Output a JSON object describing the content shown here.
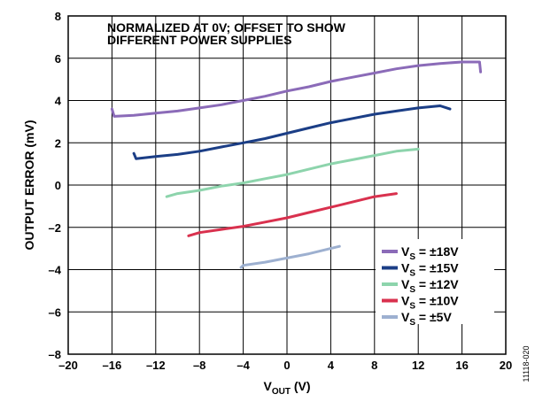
{
  "chart_data": {
    "type": "line",
    "xlabel": {
      "main": "V",
      "sub": "OUT",
      "unit": " (V)"
    },
    "ylabel": "OUTPUT ERROR (mV)",
    "xlim": [
      -20,
      20
    ],
    "ylim": [
      -8,
      8
    ],
    "xticks": [
      -20,
      -16,
      -12,
      -8,
      -4,
      0,
      4,
      8,
      12,
      16,
      20
    ],
    "yticks": [
      -8,
      -6,
      -4,
      -2,
      0,
      2,
      4,
      6,
      8
    ],
    "xtick_labels": [
      "–20",
      "–16",
      "–12",
      "–8",
      "–4",
      "0",
      "4",
      "8",
      "12",
      "16",
      "20"
    ],
    "ytick_labels": [
      "–8",
      "–6",
      "–4",
      "–2",
      "0",
      "2",
      "4",
      "6",
      "8"
    ],
    "grid": true,
    "annotation": [
      "NORMALIZED AT 0V; OFFSET TO SHOW",
      "DIFFERENT POWER SUPPLIES"
    ],
    "legend_position": "bottom-right",
    "figure_id": "11118-020",
    "series": [
      {
        "name": "V_S = ±18V",
        "legend_main": "V",
        "legend_sub": "S",
        "legend_rest": " = ±18V",
        "color": "#8B6BB8",
        "x": [
          -16,
          -15.8,
          -14,
          -12,
          -10,
          -8,
          -6,
          -4,
          -2,
          0,
          2,
          4,
          6,
          8,
          10,
          12,
          14,
          16,
          17.6,
          17.7
        ],
        "y": [
          3.6,
          3.25,
          3.3,
          3.4,
          3.5,
          3.65,
          3.8,
          4.0,
          4.2,
          4.45,
          4.65,
          4.9,
          5.1,
          5.3,
          5.5,
          5.65,
          5.75,
          5.82,
          5.82,
          5.35
        ]
      },
      {
        "name": "V_S = ±15V",
        "legend_main": "V",
        "legend_sub": "S",
        "legend_rest": " = ±15V",
        "color": "#1B3E86",
        "x": [
          -14,
          -13.8,
          -12,
          -10,
          -8,
          -6,
          -4,
          -2,
          0,
          2,
          4,
          6,
          8,
          10,
          12,
          14,
          14.9
        ],
        "y": [
          1.5,
          1.25,
          1.35,
          1.45,
          1.6,
          1.8,
          2.0,
          2.2,
          2.45,
          2.7,
          2.95,
          3.15,
          3.35,
          3.5,
          3.65,
          3.75,
          3.6
        ]
      },
      {
        "name": "V_S = ±12V",
        "legend_main": "V",
        "legend_sub": "S",
        "legend_rest": " = ±12V",
        "color": "#8DD4AC",
        "x": [
          -11,
          -10,
          -8,
          -6,
          -4,
          -2,
          0,
          2,
          4,
          6,
          8,
          10,
          12
        ],
        "y": [
          -0.55,
          -0.4,
          -0.25,
          -0.05,
          0.1,
          0.3,
          0.5,
          0.75,
          1.0,
          1.2,
          1.4,
          1.6,
          1.7
        ]
      },
      {
        "name": "V_S = ±10V",
        "legend_main": "V",
        "legend_sub": "S",
        "legend_rest": " = ±10V",
        "color": "#D9314E",
        "x": [
          -9,
          -8,
          -6,
          -4,
          -2,
          0,
          2,
          4,
          6,
          8,
          10
        ],
        "y": [
          -2.4,
          -2.25,
          -2.1,
          -1.95,
          -1.75,
          -1.55,
          -1.3,
          -1.05,
          -0.8,
          -0.55,
          -0.4
        ]
      },
      {
        "name": "V_S = ±5V",
        "legend_main": "V",
        "legend_sub": "S",
        "legend_rest": " = ±5V",
        "color": "#9DB0D0",
        "x": [
          -4.2,
          -4,
          -2,
          0,
          2,
          4,
          4.8
        ],
        "y": [
          -3.9,
          -3.8,
          -3.65,
          -3.45,
          -3.25,
          -3.0,
          -2.9
        ]
      }
    ]
  }
}
